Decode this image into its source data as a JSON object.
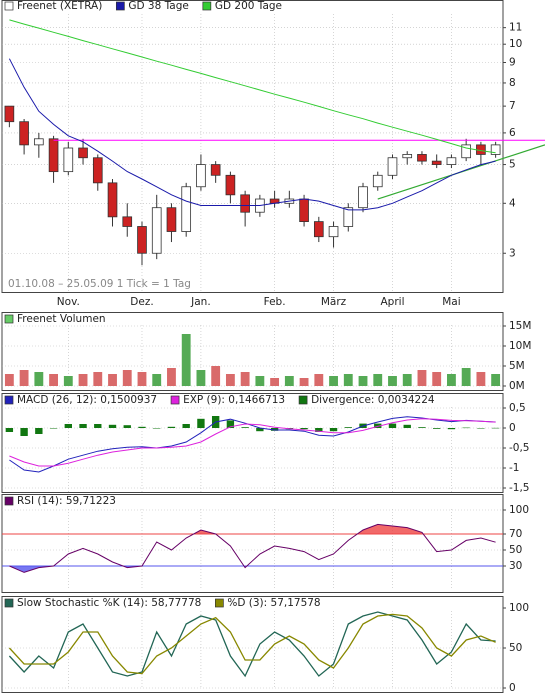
{
  "chart_data": [
    {
      "type": "candlestick",
      "categories": [
        null,
        null,
        null,
        null,
        "Nov.",
        null,
        null,
        null,
        null,
        "Dez.",
        null,
        null,
        null,
        "Jan.",
        null,
        null,
        null,
        null,
        "Feb.",
        null,
        null,
        null,
        "März",
        null,
        null,
        null,
        "April",
        null,
        null,
        null,
        "Mai",
        null,
        null,
        null
      ],
      "series": [
        {
          "name": "Freenet (XETRA)",
          "color": "#333333",
          "up_color": "#ffffff",
          "down_color": "#cc2222",
          "open": [
            7.0,
            6.4,
            5.6,
            5.8,
            4.8,
            5.5,
            5.2,
            4.5,
            3.7,
            3.5,
            3.0,
            3.9,
            3.4,
            4.4,
            5.0,
            4.7,
            4.2,
            3.8,
            4.1,
            4.0,
            4.1,
            3.6,
            3.3,
            3.5,
            3.9,
            4.4,
            4.7,
            5.2,
            5.3,
            5.1,
            5.0,
            5.2,
            5.6,
            5.3
          ],
          "high": [
            7.0,
            6.5,
            6.0,
            5.9,
            5.7,
            5.8,
            5.3,
            4.6,
            4.0,
            3.6,
            4.2,
            4.0,
            4.5,
            5.3,
            5.1,
            4.8,
            4.3,
            4.2,
            4.3,
            4.3,
            4.2,
            3.7,
            3.6,
            4.0,
            4.5,
            4.8,
            5.3,
            5.4,
            5.4,
            5.3,
            5.3,
            5.8,
            5.7,
            5.7
          ],
          "low": [
            6.2,
            5.3,
            5.2,
            4.5,
            4.7,
            5.0,
            4.3,
            3.5,
            3.3,
            2.8,
            2.9,
            3.2,
            3.3,
            4.3,
            4.5,
            4.0,
            3.5,
            3.7,
            3.9,
            3.9,
            3.5,
            3.2,
            3.1,
            3.4,
            3.8,
            4.3,
            4.6,
            5.0,
            5.0,
            4.9,
            4.9,
            5.1,
            5.0,
            5.2
          ],
          "close": [
            6.4,
            5.6,
            5.8,
            4.8,
            5.5,
            5.2,
            4.5,
            3.7,
            3.5,
            3.0,
            3.9,
            3.4,
            4.4,
            5.0,
            4.7,
            4.2,
            3.8,
            4.1,
            4.0,
            4.1,
            3.6,
            3.3,
            3.5,
            3.9,
            4.4,
            4.7,
            5.2,
            5.3,
            5.1,
            5.0,
            5.2,
            5.6,
            5.3,
            5.6
          ]
        },
        {
          "name": "GD 38 Tage",
          "color": "#1a1aaa",
          "values": [
            9.2,
            7.8,
            6.8,
            6.3,
            5.9,
            5.7,
            5.4,
            5.1,
            4.8,
            4.6,
            4.4,
            4.2,
            4.05,
            3.95,
            3.95,
            3.95,
            3.95,
            3.95,
            4.0,
            4.05,
            4.1,
            4.05,
            3.95,
            3.85,
            3.85,
            3.9,
            4.0,
            4.15,
            4.3,
            4.5,
            4.7,
            4.85,
            5.0,
            5.1
          ]
        },
        {
          "name": "GD 200 Tage",
          "color": "#33cc33",
          "values": [
            11.5,
            11.23,
            10.97,
            10.71,
            10.46,
            10.21,
            9.97,
            9.74,
            9.51,
            9.29,
            9.07,
            8.86,
            8.65,
            8.45,
            8.25,
            8.06,
            7.87,
            7.68,
            7.5,
            7.33,
            7.16,
            6.99,
            6.82,
            6.66,
            6.51,
            6.35,
            6.2,
            6.06,
            5.92,
            5.78,
            5.64,
            5.5,
            5.42,
            5.35
          ]
        }
      ],
      "log": true,
      "ylim": [
        2.4,
        11.9
      ],
      "yticks": [
        3,
        4,
        5,
        6,
        7,
        8,
        9,
        10,
        11
      ],
      "grid": true,
      "resistance": {
        "value": 5.75,
        "color": "#ff00ff"
      },
      "trendline": {
        "values": [
          4.1,
          5.6
        ],
        "color": "#33aa33"
      },
      "annotation": "01.10.08 – 25.05.09   1 Tick = 1 Tag"
    },
    {
      "type": "volume",
      "series": [
        {
          "name": "Freenet Volumen",
          "color": "#66cc66",
          "values": [
            3,
            4,
            3.5,
            3,
            2.5,
            3,
            3.5,
            3,
            4,
            3.5,
            3,
            4.5,
            13,
            4,
            5,
            3,
            3.5,
            2.5,
            2,
            2.5,
            2,
            3,
            2.5,
            3,
            2.5,
            3,
            2.5,
            3,
            4,
            3.5,
            3,
            4.5,
            3.5,
            3
          ]
        }
      ],
      "up_color": "#55aa55",
      "down_color": "#d96a6a",
      "ylim": [
        0,
        16
      ],
      "yticks": [
        {
          "value": 0,
          "label": "0M"
        },
        {
          "value": 5,
          "label": "5M"
        },
        {
          "value": 10,
          "label": "10M"
        },
        {
          "value": 15,
          "label": "15M"
        }
      ],
      "grid": true
    },
    {
      "type": "macd",
      "series": [
        {
          "name": "MACD (26, 12): 0,1500937",
          "color": "#2222bb",
          "values": [
            -0.8,
            -1.05,
            -1.1,
            -0.95,
            -0.78,
            -0.68,
            -0.58,
            -0.52,
            -0.48,
            -0.47,
            -0.5,
            -0.45,
            -0.35,
            -0.12,
            0.15,
            0.22,
            0.12,
            0.0,
            -0.05,
            -0.05,
            -0.08,
            -0.18,
            -0.2,
            -0.1,
            0.05,
            0.15,
            0.24,
            0.28,
            0.25,
            0.2,
            0.16,
            0.19,
            0.17,
            0.1500937
          ]
        },
        {
          "name": "EXP (9): 0,1466713",
          "color": "#dd22dd",
          "values": [
            -0.7,
            -0.85,
            -0.95,
            -0.95,
            -0.88,
            -0.78,
            -0.68,
            -0.6,
            -0.55,
            -0.5,
            -0.5,
            -0.48,
            -0.45,
            -0.35,
            -0.15,
            0.03,
            0.1,
            0.08,
            0.02,
            -0.02,
            -0.05,
            -0.08,
            -0.12,
            -0.12,
            -0.06,
            0.04,
            0.13,
            0.2,
            0.23,
            0.22,
            0.19,
            0.18,
            0.17,
            0.1466713
          ]
        },
        {
          "name": "Divergence: 0,0034224",
          "color": "#117711",
          "type": "bar",
          "values": [
            -0.1,
            -0.2,
            -0.15,
            0,
            0.1,
            0.1,
            0.1,
            0.08,
            0.07,
            0.03,
            0,
            0.03,
            0.1,
            0.23,
            0.3,
            0.19,
            0.02,
            -0.08,
            -0.07,
            -0.03,
            -0.03,
            -0.1,
            -0.08,
            0.02,
            0.11,
            0.11,
            0.11,
            0.08,
            0.02,
            -0.02,
            -0.03,
            0.01,
            0,
            0.0034224
          ]
        }
      ],
      "ylim": [
        -1.6,
        0.6
      ],
      "yticks": [
        {
          "value": 0.5,
          "label": "0,5"
        },
        0,
        {
          "value": -0.5,
          "label": "-0,5"
        },
        -1,
        {
          "value": -1.5,
          "label": "-1,5"
        }
      ],
      "grid": true
    },
    {
      "type": "rsi",
      "series": [
        {
          "name": "RSI (14): 59,71223",
          "color": "#660066",
          "values": [
            30,
            22,
            28,
            30,
            45,
            52,
            45,
            35,
            28,
            30,
            60,
            50,
            65,
            75,
            70,
            55,
            28,
            45,
            55,
            52,
            48,
            38,
            45,
            62,
            75,
            82,
            80,
            78,
            72,
            48,
            50,
            62,
            65,
            59.71223
          ]
        }
      ],
      "bands": [
        {
          "value": 70,
          "color": "#ee4444",
          "side": "above"
        },
        {
          "value": 30,
          "color": "#5555ee",
          "side": "below"
        }
      ],
      "ylim": [
        0,
        105
      ],
      "yticks": [
        30,
        50,
        70,
        100
      ],
      "grid": true
    },
    {
      "type": "stochastic",
      "series": [
        {
          "name": "Slow Stochastic %K (14): 58,77778",
          "color": "#226655",
          "values": [
            40,
            20,
            40,
            25,
            70,
            80,
            50,
            20,
            15,
            20,
            70,
            40,
            80,
            90,
            85,
            40,
            15,
            55,
            70,
            60,
            40,
            15,
            30,
            80,
            90,
            95,
            90,
            85,
            60,
            30,
            45,
            80,
            60,
            58.77778
          ]
        },
        {
          "name": "%D (3): 57,17578",
          "color": "#888800",
          "values": [
            50,
            30,
            30,
            30,
            45,
            70,
            70,
            40,
            20,
            18,
            40,
            50,
            65,
            80,
            88,
            70,
            35,
            35,
            55,
            65,
            55,
            35,
            25,
            50,
            80,
            90,
            92,
            90,
            75,
            50,
            40,
            60,
            65,
            57.17578
          ]
        }
      ],
      "ylim": [
        0,
        100
      ],
      "yticks": [
        0,
        50,
        100
      ],
      "grid": true
    }
  ]
}
